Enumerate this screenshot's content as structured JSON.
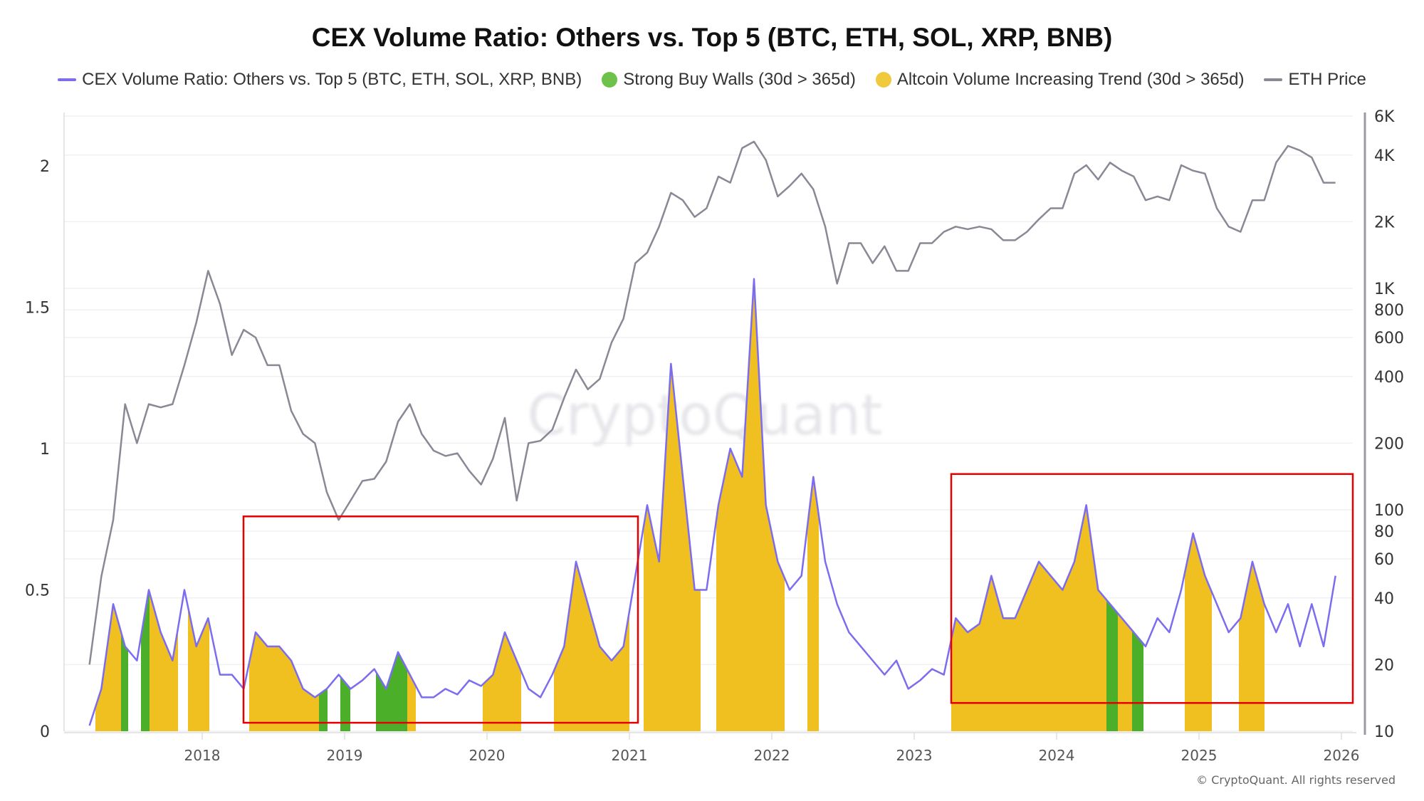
{
  "title": "CEX Volume Ratio: Others vs. Top 5 (BTC, ETH, SOL, XRP, BNB)",
  "legend": [
    {
      "label": "CEX Volume Ratio: Others vs. Top 5 (BTC, ETH, SOL, XRP, BNB)",
      "type": "line",
      "color": "#7b6cf0"
    },
    {
      "label": "Strong Buy Walls (30d > 365d)",
      "type": "dot",
      "color": "#6cc24a"
    },
    {
      "label": "Altcoin Volume Increasing Trend (30d > 365d)",
      "type": "dot",
      "color": "#f0c93c"
    },
    {
      "label": "ETH Price",
      "type": "line",
      "color": "#8a8894"
    }
  ],
  "watermark": "CryptoQuant",
  "copyright": "© CryptoQuant. All rights reserved",
  "chart_data": {
    "type": "line",
    "title": "CEX Volume Ratio: Others vs. Top 5 (BTC, ETH, SOL, XRP, BNB)",
    "x_ticks": [
      "2018",
      "2019",
      "2020",
      "2021",
      "2022",
      "2023",
      "2024",
      "2025",
      "2026"
    ],
    "left_axis": {
      "ticks": [
        "0",
        "0.5",
        "1",
        "1.5",
        "2"
      ],
      "range": [
        0,
        2.2
      ]
    },
    "right_axis": {
      "scale": "log",
      "ticks": [
        "10",
        "20",
        "40",
        "60",
        "80",
        "100",
        "200",
        "400",
        "600",
        "800",
        "1K",
        "2K",
        "4K",
        "6K"
      ],
      "tick_values": [
        10,
        20,
        40,
        60,
        80,
        100,
        200,
        400,
        600,
        800,
        1000,
        2000,
        4000,
        6000
      ],
      "range": [
        10,
        6500
      ]
    },
    "grid": true,
    "legend_placement": "top",
    "colors": {
      "ratio": "#7b6cf0",
      "eth": "#8a8894",
      "buy_walls": "#4caf2a",
      "altcoin_trend": "#f0c020",
      "annotation": "#e60000"
    },
    "ratio": {
      "dates": [
        "2017-03",
        "2017-04",
        "2017-05",
        "2017-06",
        "2017-07",
        "2017-08",
        "2017-09",
        "2017-10",
        "2017-11",
        "2017-12",
        "2018-01",
        "2018-02",
        "2018-03",
        "2018-04",
        "2018-05",
        "2018-06",
        "2018-07",
        "2018-08",
        "2018-09",
        "2018-10",
        "2018-11",
        "2018-12",
        "2019-01",
        "2019-02",
        "2019-03",
        "2019-04",
        "2019-05",
        "2019-06",
        "2019-07",
        "2019-08",
        "2019-09",
        "2019-10",
        "2019-11",
        "2019-12",
        "2020-01",
        "2020-02",
        "2020-03",
        "2020-04",
        "2020-05",
        "2020-06",
        "2020-07",
        "2020-08",
        "2020-09",
        "2020-10",
        "2020-11",
        "2020-12",
        "2021-01",
        "2021-02",
        "2021-03",
        "2021-04",
        "2021-05",
        "2021-06",
        "2021-07",
        "2021-08",
        "2021-09",
        "2021-10",
        "2021-11",
        "2021-12",
        "2022-01",
        "2022-02",
        "2022-03",
        "2022-04",
        "2022-05",
        "2022-06",
        "2022-07",
        "2022-08",
        "2022-09",
        "2022-10",
        "2022-11",
        "2022-12",
        "2023-01",
        "2023-02",
        "2023-03",
        "2023-04",
        "2023-05",
        "2023-06",
        "2023-07",
        "2023-08",
        "2023-09",
        "2023-10",
        "2023-11",
        "2023-12",
        "2024-01",
        "2024-02",
        "2024-03",
        "2024-04",
        "2024-05",
        "2024-06",
        "2024-07",
        "2024-08",
        "2024-09",
        "2024-10",
        "2024-11",
        "2024-12",
        "2025-01",
        "2025-02",
        "2025-03",
        "2025-04",
        "2025-05",
        "2025-06",
        "2025-07",
        "2025-08",
        "2025-09",
        "2025-10",
        "2025-11",
        "2025-12"
      ],
      "values": [
        0.02,
        0.15,
        0.45,
        0.3,
        0.25,
        0.5,
        0.35,
        0.25,
        0.5,
        0.3,
        0.4,
        0.2,
        0.2,
        0.15,
        0.35,
        0.3,
        0.3,
        0.25,
        0.15,
        0.12,
        0.15,
        0.2,
        0.15,
        0.18,
        0.22,
        0.15,
        0.28,
        0.2,
        0.12,
        0.12,
        0.15,
        0.13,
        0.18,
        0.16,
        0.2,
        0.35,
        0.25,
        0.15,
        0.12,
        0.2,
        0.3,
        0.6,
        0.45,
        0.3,
        0.25,
        0.3,
        0.55,
        0.8,
        0.6,
        1.3,
        0.9,
        0.5,
        0.5,
        0.8,
        1.0,
        0.9,
        1.6,
        0.8,
        0.6,
        0.5,
        0.55,
        0.9,
        0.6,
        0.45,
        0.35,
        0.3,
        0.25,
        0.2,
        0.25,
        0.15,
        0.18,
        0.22,
        0.2,
        0.4,
        0.35,
        0.38,
        0.55,
        0.4,
        0.4,
        0.5,
        0.6,
        0.55,
        0.5,
        0.6,
        0.8,
        0.5,
        0.45,
        0.4,
        0.35,
        0.3,
        0.4,
        0.35,
        0.5,
        0.7,
        0.55,
        0.45,
        0.35,
        0.4,
        0.6,
        0.45,
        0.35,
        0.45,
        0.3,
        0.45,
        0.3,
        0.55
      ]
    },
    "eth_price": {
      "dates": [
        "2017-03",
        "2017-04",
        "2017-05",
        "2017-06",
        "2017-07",
        "2017-08",
        "2017-09",
        "2017-10",
        "2017-11",
        "2017-12",
        "2018-01",
        "2018-02",
        "2018-03",
        "2018-04",
        "2018-05",
        "2018-06",
        "2018-07",
        "2018-08",
        "2018-09",
        "2018-10",
        "2018-11",
        "2018-12",
        "2019-01",
        "2019-02",
        "2019-03",
        "2019-04",
        "2019-05",
        "2019-06",
        "2019-07",
        "2019-08",
        "2019-09",
        "2019-10",
        "2019-11",
        "2019-12",
        "2020-01",
        "2020-02",
        "2020-03",
        "2020-04",
        "2020-05",
        "2020-06",
        "2020-07",
        "2020-08",
        "2020-09",
        "2020-10",
        "2020-11",
        "2020-12",
        "2021-01",
        "2021-02",
        "2021-03",
        "2021-04",
        "2021-05",
        "2021-06",
        "2021-07",
        "2021-08",
        "2021-09",
        "2021-10",
        "2021-11",
        "2021-12",
        "2022-01",
        "2022-02",
        "2022-03",
        "2022-04",
        "2022-05",
        "2022-06",
        "2022-07",
        "2022-08",
        "2022-09",
        "2022-10",
        "2022-11",
        "2022-12",
        "2023-01",
        "2023-02",
        "2023-03",
        "2023-04",
        "2023-05",
        "2023-06",
        "2023-07",
        "2023-08",
        "2023-09",
        "2023-10",
        "2023-11",
        "2023-12",
        "2024-01",
        "2024-02",
        "2024-03",
        "2024-04",
        "2024-05",
        "2024-06",
        "2024-07",
        "2024-08",
        "2024-09",
        "2024-10",
        "2024-11",
        "2024-12",
        "2025-01",
        "2025-02",
        "2025-03",
        "2025-04",
        "2025-05",
        "2025-06",
        "2025-07",
        "2025-08",
        "2025-09",
        "2025-10",
        "2025-11",
        "2025-12"
      ],
      "values": [
        20,
        50,
        90,
        300,
        200,
        300,
        290,
        300,
        450,
        700,
        1200,
        850,
        500,
        650,
        600,
        450,
        450,
        280,
        220,
        200,
        120,
        90,
        110,
        135,
        138,
        165,
        250,
        300,
        220,
        185,
        175,
        180,
        150,
        130,
        170,
        260,
        110,
        200,
        205,
        230,
        320,
        430,
        350,
        390,
        570,
        730,
        1300,
        1450,
        1900,
        2700,
        2500,
        2100,
        2300,
        3200,
        3000,
        4300,
        4600,
        3800,
        2600,
        2900,
        3300,
        2800,
        1900,
        1050,
        1600,
        1600,
        1300,
        1550,
        1200,
        1200,
        1600,
        1600,
        1800,
        1900,
        1850,
        1900,
        1850,
        1650,
        1650,
        1800,
        2050,
        2300,
        2300,
        3300,
        3600,
        3100,
        3700,
        3400,
        3200,
        2500,
        2600,
        2500,
        3600,
        3400,
        3300,
        2300,
        1900,
        1800,
        2500,
        2500,
        3700,
        4400,
        4200,
        3900,
        3000,
        3000
      ]
    },
    "altcoin_trend_periods": [
      [
        2017.25,
        2017.43
      ],
      [
        2017.63,
        2017.83
      ],
      [
        2017.9,
        2018.05
      ],
      [
        2018.33,
        2018.82
      ],
      [
        2019.44,
        2019.5
      ],
      [
        2019.97,
        2020.24
      ],
      [
        2020.47,
        2021.0
      ],
      [
        2021.1,
        2021.5
      ],
      [
        2021.61,
        2022.09
      ],
      [
        2022.25,
        2022.33
      ],
      [
        2023.26,
        2024.35
      ],
      [
        2024.43,
        2024.53
      ],
      [
        2024.9,
        2025.09
      ],
      [
        2025.28,
        2025.46
      ]
    ],
    "buy_walls_periods": [
      [
        2017.43,
        2017.48
      ],
      [
        2017.57,
        2017.63
      ],
      [
        2018.82,
        2018.88
      ],
      [
        2018.97,
        2019.04
      ],
      [
        2019.22,
        2019.44
      ],
      [
        2024.35,
        2024.43
      ],
      [
        2024.53,
        2024.61
      ]
    ],
    "annotations": [
      {
        "type": "box",
        "x": [
          2018.29,
          2021.06
        ],
        "y": [
          0.03,
          0.76
        ]
      },
      {
        "type": "box",
        "x": [
          2023.26,
          2026.08
        ],
        "y": [
          0.1,
          0.91
        ]
      }
    ]
  }
}
